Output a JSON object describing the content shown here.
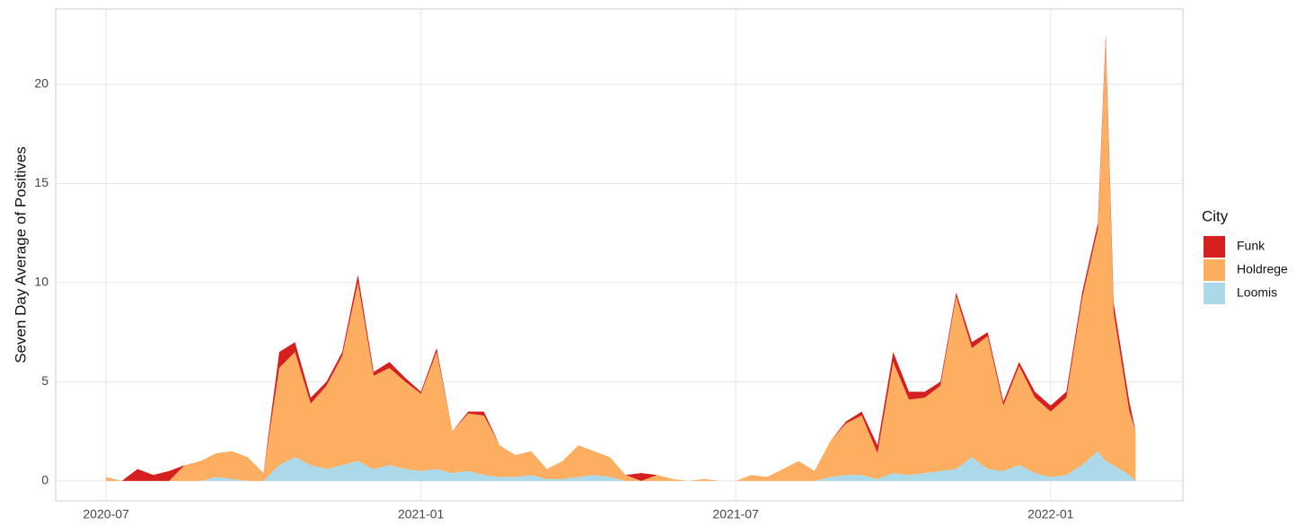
{
  "chart_data": {
    "type": "stacked_area",
    "y_label": "Seven Day Average of Positives",
    "legend_title": "City",
    "x": [
      2020.5,
      2020.525,
      2020.55,
      2020.575,
      2020.6,
      2020.625,
      2020.65,
      2020.675,
      2020.7,
      2020.725,
      2020.75,
      2020.775,
      2020.8,
      2020.825,
      2020.85,
      2020.875,
      2020.9,
      2020.925,
      2020.95,
      2020.975,
      2021.0,
      2021.025,
      2021.05,
      2021.075,
      2021.1,
      2021.125,
      2021.15,
      2021.175,
      2021.2,
      2021.225,
      2021.25,
      2021.275,
      2021.3,
      2021.325,
      2021.35,
      2021.375,
      2021.4,
      2021.425,
      2021.45,
      2021.475,
      2021.5,
      2021.525,
      2021.55,
      2021.575,
      2021.6,
      2021.625,
      2021.65,
      2021.675,
      2021.7,
      2021.725,
      2021.75,
      2021.775,
      2021.8,
      2021.825,
      2021.85,
      2021.875,
      2021.9,
      2021.925,
      2021.95,
      2021.975,
      2022.0,
      2022.025,
      2022.05,
      2022.075,
      2022.0875,
      2022.1,
      2022.125,
      2022.135
    ],
    "series": [
      {
        "name": "Funk",
        "color": "#d62020",
        "values": [
          0,
          0,
          0.6,
          0.3,
          0.5,
          0,
          0,
          0,
          0,
          0,
          0,
          0.8,
          0.5,
          0.3,
          0.2,
          0.2,
          0.4,
          0.2,
          0.3,
          0.2,
          0.1,
          0.2,
          0,
          0.1,
          0.2,
          0,
          0,
          0,
          0,
          0,
          0,
          0,
          0,
          0,
          0.4,
          0,
          0,
          0,
          0,
          0,
          0,
          0,
          0,
          0,
          0,
          0,
          0,
          0.1,
          0.2,
          0.4,
          0.5,
          0.4,
          0.3,
          0.2,
          0.2,
          0.3,
          0.2,
          0.2,
          0.2,
          0.3,
          0.3,
          0.3,
          0.3,
          0.3,
          0.3,
          0.5,
          0.5,
          0
        ]
      },
      {
        "name": "Holdrege",
        "color": "#fdae61",
        "values": [
          0.2,
          0,
          0,
          0,
          0,
          0.8,
          1.0,
          1.2,
          1.4,
          1.2,
          0.4,
          4.9,
          5.3,
          3.1,
          4.2,
          5.5,
          9.0,
          4.7,
          4.9,
          4.4,
          3.9,
          5.9,
          2.1,
          2.9,
          3.0,
          1.6,
          1.1,
          1.2,
          0.5,
          0.9,
          1.6,
          1.2,
          1.0,
          0.3,
          0,
          0.3,
          0.1,
          0,
          0.1,
          0,
          0,
          0.3,
          0.2,
          0.6,
          1.0,
          0.5,
          1.8,
          2.6,
          3.0,
          1.3,
          5.6,
          3.8,
          3.8,
          4.3,
          8.7,
          5.5,
          6.7,
          3.3,
          5.0,
          3.8,
          3.3,
          3.9,
          8.4,
          11.2,
          21.2,
          7.7,
          3.2,
          2.5
        ]
      },
      {
        "name": "Loomis",
        "color": "#abd9e9",
        "values": [
          0,
          0,
          0,
          0,
          0,
          0,
          0,
          0.2,
          0.1,
          0,
          0,
          0.8,
          1.2,
          0.8,
          0.6,
          0.8,
          1.0,
          0.6,
          0.8,
          0.6,
          0.5,
          0.6,
          0.4,
          0.5,
          0.3,
          0.2,
          0.2,
          0.3,
          0.1,
          0.1,
          0.2,
          0.3,
          0.2,
          0,
          0,
          0,
          0,
          0,
          0,
          0,
          0,
          0,
          0,
          0,
          0,
          0,
          0.2,
          0.3,
          0.3,
          0.1,
          0.4,
          0.3,
          0.4,
          0.5,
          0.6,
          1.2,
          0.6,
          0.5,
          0.8,
          0.4,
          0.2,
          0.3,
          0.8,
          1.5,
          1.0,
          0.8,
          0.3,
          0
        ]
      }
    ],
    "xlim": [
      2020.42,
      2022.21
    ],
    "xticks": [
      {
        "value": 2020.5,
        "label": "2020-07"
      },
      {
        "value": 2021.0,
        "label": "2021-01"
      },
      {
        "value": 2021.5,
        "label": "2021-07"
      },
      {
        "value": 2022.0,
        "label": "2022-01"
      }
    ],
    "ylim": [
      -1.0,
      23.8
    ],
    "yticks": [
      0,
      5,
      10,
      15,
      20
    ],
    "grid": true
  }
}
